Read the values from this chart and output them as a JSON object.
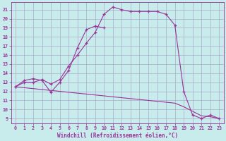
{
  "xlabel": "Windchill (Refroidissement éolien,°C)",
  "background_color": "#c8ecec",
  "grid_color": "#aaaacc",
  "line_color": "#993399",
  "x_ticks": [
    0,
    1,
    2,
    3,
    4,
    5,
    6,
    7,
    8,
    9,
    10,
    11,
    12,
    13,
    14,
    15,
    16,
    17,
    18,
    19,
    20,
    21,
    22,
    23
  ],
  "y_ticks": [
    9,
    10,
    11,
    12,
    13,
    14,
    15,
    16,
    17,
    18,
    19,
    20,
    21
  ],
  "xlim": [
    -0.5,
    23.5
  ],
  "ylim": [
    8.5,
    21.8
  ],
  "series_main_x": [
    0,
    1,
    2,
    3,
    4,
    5,
    6,
    7,
    8,
    9,
    10,
    11,
    12,
    13,
    14,
    15,
    16,
    17,
    18,
    19,
    20,
    21,
    22,
    23
  ],
  "series_main_y": [
    12.5,
    13.0,
    13.0,
    13.3,
    12.8,
    13.3,
    14.8,
    16.0,
    17.3,
    18.5,
    20.5,
    21.3,
    21.0,
    20.8,
    20.8,
    20.8,
    20.8,
    20.5,
    19.3,
    12.0,
    9.4,
    9.0,
    9.4,
    9.0
  ],
  "series_small_x": [
    0,
    1,
    2,
    3,
    4,
    5,
    6,
    7,
    8,
    9,
    10
  ],
  "series_small_y": [
    12.5,
    13.2,
    13.4,
    13.2,
    11.9,
    13.0,
    14.3,
    16.8,
    18.8,
    19.2,
    19.0
  ],
  "series_decline_x": [
    0,
    1,
    2,
    3,
    4,
    5,
    6,
    7,
    8,
    9,
    10,
    11,
    12,
    13,
    14,
    15,
    16,
    17,
    18,
    19,
    20,
    21,
    22,
    23
  ],
  "series_decline_y": [
    12.5,
    12.4,
    12.3,
    12.2,
    12.1,
    12.0,
    11.9,
    11.8,
    11.7,
    11.6,
    11.5,
    11.4,
    11.3,
    11.2,
    11.1,
    11.0,
    10.9,
    10.8,
    10.7,
    10.3,
    9.8,
    9.3,
    9.2,
    9.0
  ]
}
